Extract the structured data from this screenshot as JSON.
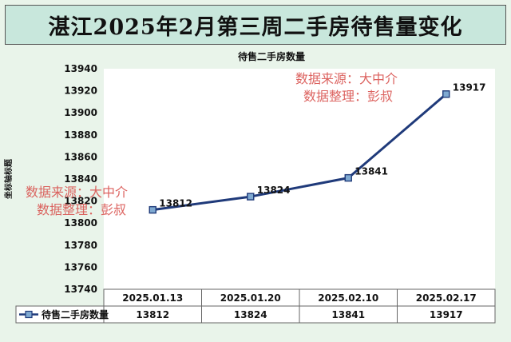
{
  "page": {
    "title": "湛江2025年2月第三周二手房待售量变化"
  },
  "chart_data": {
    "type": "line",
    "title": "待售二手房数量",
    "ylabel": "坐标轴标题",
    "xlabel": "",
    "categories": [
      "2025.01.13",
      "2025.01.20",
      "2025.02.10",
      "2025.02.17"
    ],
    "series": [
      {
        "name": "待售二手房数量",
        "values": [
          13812,
          13824,
          13841,
          13917
        ],
        "color": "#1f3a7a"
      }
    ],
    "ylim": [
      13740,
      13940
    ],
    "yticks": [
      13740,
      13760,
      13780,
      13800,
      13820,
      13840,
      13860,
      13880,
      13900,
      13920,
      13940
    ],
    "grid": false,
    "legend": "data-table",
    "data_table": true
  },
  "watermarks": [
    {
      "line1": "数据来源：大中介",
      "line2": "数据整理：彭叔"
    },
    {
      "line1": "数据来源：大中介",
      "line2": "数据整理：彭叔"
    }
  ]
}
